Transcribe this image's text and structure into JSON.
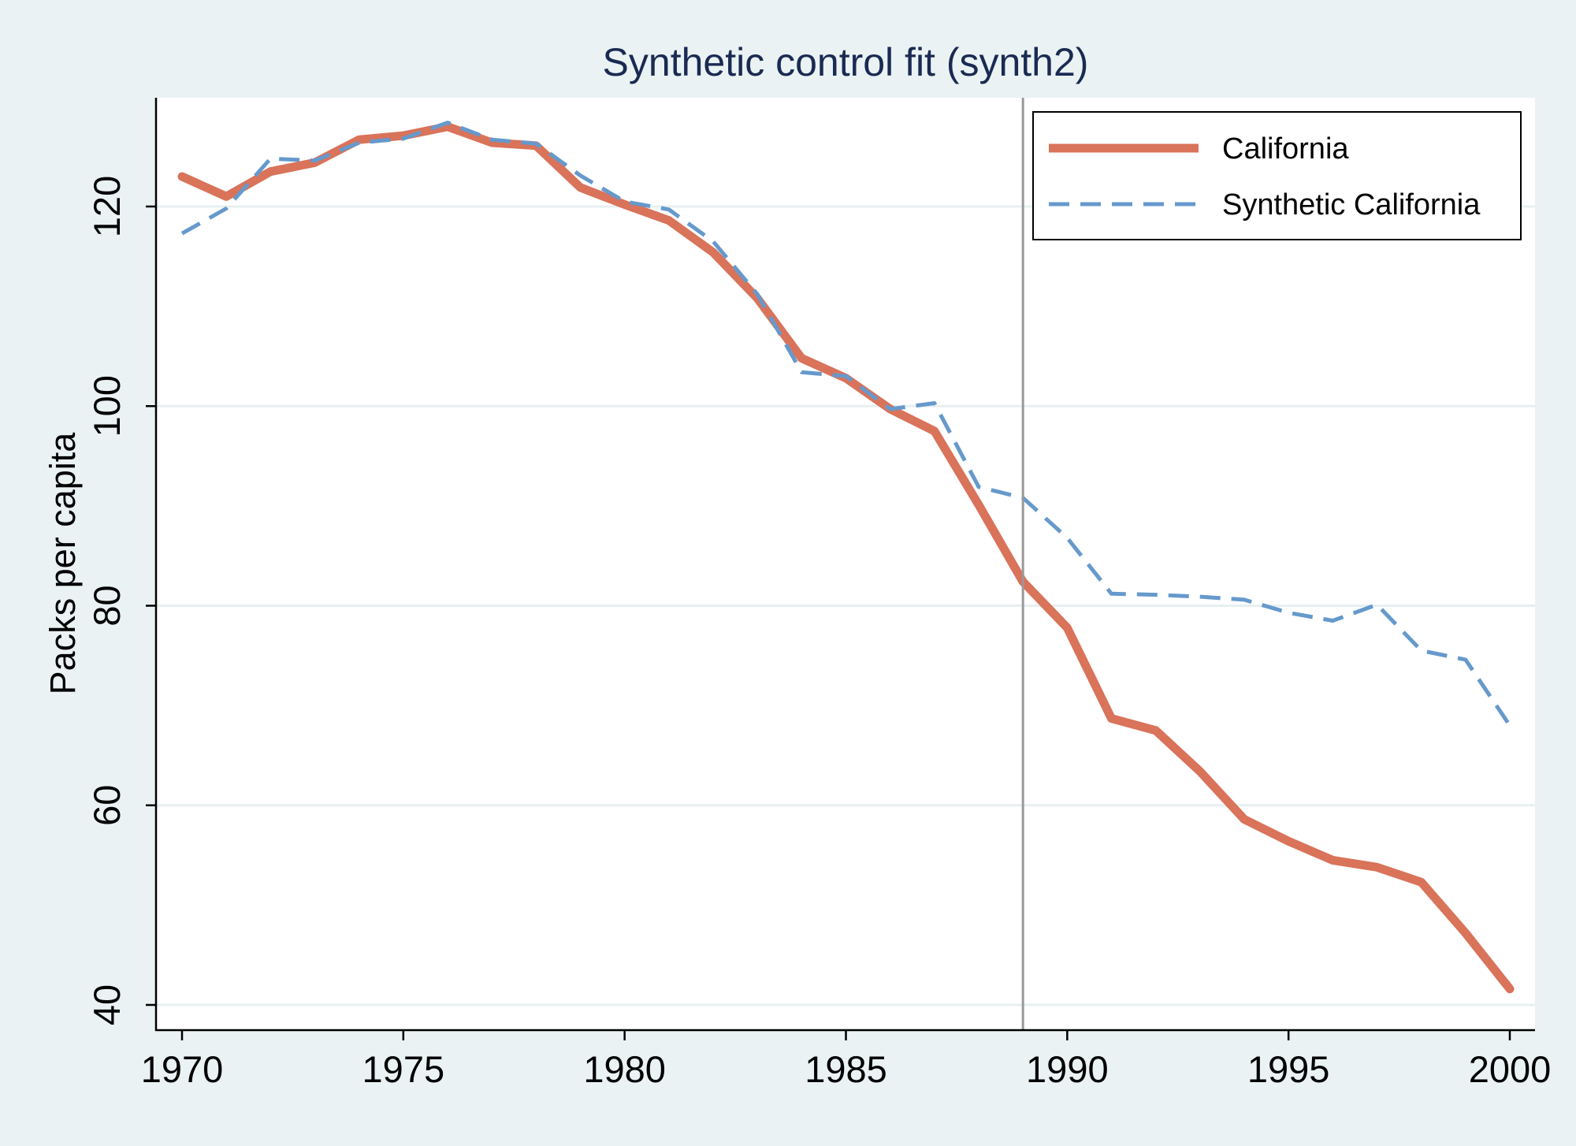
{
  "chart_data": {
    "type": "line",
    "title": "Synthetic control fit (synth2)",
    "xlabel": "",
    "ylabel": "Packs per capita",
    "xlim": [
      1970,
      2000
    ],
    "ylim": [
      40,
      130
    ],
    "xticks": [
      1970,
      1975,
      1980,
      1985,
      1990,
      1995,
      2000
    ],
    "yticks": [
      40,
      60,
      80,
      100,
      120
    ],
    "grid": true,
    "treatment_line_x": 1989,
    "legend_position": "top-right",
    "x": [
      1970,
      1971,
      1972,
      1973,
      1974,
      1975,
      1976,
      1977,
      1978,
      1979,
      1980,
      1981,
      1982,
      1983,
      1984,
      1985,
      1986,
      1987,
      1988,
      1989,
      1990,
      1991,
      1992,
      1993,
      1994,
      1995,
      1996,
      1997,
      1998,
      1999,
      2000
    ],
    "series": [
      {
        "name": "California",
        "color": "#d9735a",
        "style": "solid",
        "values": [
          123.0,
          121.0,
          123.5,
          124.4,
          126.7,
          127.1,
          128.0,
          126.4,
          126.1,
          121.9,
          120.2,
          118.6,
          115.4,
          110.8,
          104.8,
          102.8,
          99.7,
          97.5,
          90.1,
          82.4,
          77.8,
          68.7,
          67.5,
          63.4,
          58.6,
          56.4,
          54.5,
          53.8,
          52.3,
          47.2,
          41.6
        ]
      },
      {
        "name": "Synthetic California",
        "color": "#6699cc",
        "style": "dashed",
        "values": [
          117.3,
          119.8,
          124.8,
          124.6,
          126.4,
          126.8,
          128.4,
          126.7,
          126.3,
          123.1,
          120.5,
          119.7,
          116.5,
          111.2,
          103.4,
          103.0,
          99.7,
          100.3,
          91.9,
          90.8,
          86.8,
          81.2,
          81.1,
          80.9,
          80.6,
          79.3,
          78.5,
          80.1,
          75.5,
          74.6,
          68.0
        ]
      }
    ]
  }
}
